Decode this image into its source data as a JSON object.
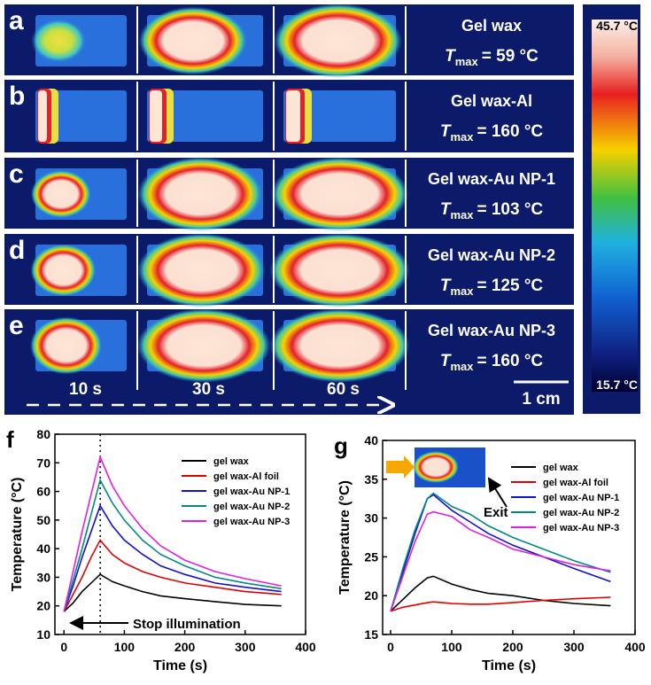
{
  "figure": {
    "rows": [
      {
        "label": "a",
        "sample": "Gel wax",
        "t": "T",
        "sub": "max",
        "tmax": "= 59 °C"
      },
      {
        "label": "b",
        "sample": "Gel wax-Al",
        "t": "T",
        "sub": "max",
        "tmax": "= 160 °C"
      },
      {
        "label": "c",
        "sample": "Gel wax-Au NP-1",
        "t": "T",
        "sub": "max",
        "tmax": "= 103 °C"
      },
      {
        "label": "d",
        "sample": "Gel wax-Au NP-2",
        "t": "T",
        "sub": "max",
        "tmax": "= 125 °C"
      },
      {
        "label": "e",
        "sample": "Gel wax-Au NP-3",
        "t": "T",
        "sub": "max",
        "tmax": "= 160 °C"
      }
    ],
    "times": [
      "10 s",
      "30 s",
      "60 s"
    ],
    "scale_bar": "1 cm",
    "colorbar_max": "45.7 °C",
    "colorbar_min": "15.7 °C"
  },
  "chart_data": [
    {
      "type": "line",
      "panel": "f",
      "xlabel": "Time (s)",
      "ylabel": "Temperature (°C)",
      "xlim": [
        -15,
        400
      ],
      "xticks": [
        0,
        100,
        200,
        300,
        400
      ],
      "ylim": [
        10,
        80
      ],
      "yticks": [
        10,
        20,
        30,
        40,
        50,
        60,
        70,
        80
      ],
      "legend": "upper right",
      "vline": 60,
      "annotation": "Stop illumination",
      "x": [
        0,
        15,
        30,
        45,
        60,
        80,
        100,
        130,
        160,
        200,
        250,
        300,
        360
      ],
      "series": [
        {
          "name": "gel wax",
          "color": "#000000",
          "values": [
            18,
            21,
            25,
            28,
            31,
            28.5,
            27,
            25,
            23.5,
            22.5,
            21.5,
            20.5,
            20
          ]
        },
        {
          "name": "gel wax-Al foil",
          "color": "#e00000",
          "values": [
            18,
            24,
            30,
            37,
            43,
            38,
            35,
            32,
            30,
            28,
            26.5,
            25,
            24
          ]
        },
        {
          "name": "gel wax-Au NP-1",
          "color": "#1010d0",
          "values": [
            18,
            27,
            37,
            46,
            55,
            48,
            43,
            38,
            34,
            31,
            28,
            26.5,
            25
          ]
        },
        {
          "name": "gel wax-Au NP-2",
          "color": "#008a80",
          "values": [
            18,
            29,
            40,
            52,
            64,
            56,
            50,
            43,
            38,
            34,
            30,
            28,
            26
          ]
        },
        {
          "name": "gel wax-Au NP-3",
          "color": "#e020e0",
          "values": [
            18,
            32,
            46,
            59,
            72,
            62,
            55,
            47,
            41,
            36,
            32,
            29.5,
            27
          ]
        }
      ]
    },
    {
      "type": "line",
      "panel": "g",
      "xlabel": "Time (s)",
      "ylabel": "Temperature (°C)",
      "xlim": [
        -13,
        400
      ],
      "xticks": [
        0,
        100,
        200,
        300,
        400
      ],
      "ylim": [
        15,
        40
      ],
      "yticks": [
        15,
        20,
        25,
        30,
        35,
        40
      ],
      "legend": "upper right",
      "annotation": "Exit",
      "x": [
        0,
        20,
        40,
        60,
        70,
        100,
        130,
        160,
        200,
        250,
        300,
        360
      ],
      "series": [
        {
          "name": "gel wax",
          "color": "#000000",
          "values": [
            18,
            19.5,
            21,
            22.3,
            22.5,
            21.5,
            20.8,
            20.3,
            20,
            19.4,
            19,
            18.7
          ]
        },
        {
          "name": "gel wax-Al foil",
          "color": "#e00000",
          "values": [
            18,
            18.5,
            18.8,
            19.1,
            19.2,
            19,
            18.9,
            18.9,
            19.1,
            19.4,
            19.6,
            19.8
          ]
        },
        {
          "name": "gel wax-Au NP-1",
          "color": "#1010d0",
          "values": [
            18,
            23,
            28,
            32.5,
            33,
            31,
            29.5,
            28,
            26.5,
            25,
            23.5,
            21.8
          ]
        },
        {
          "name": "gel wax-Au NP-2",
          "color": "#008a80",
          "values": [
            18,
            23.5,
            28.5,
            32.5,
            33.2,
            31.5,
            30.5,
            29,
            27.5,
            26,
            24.5,
            23
          ]
        },
        {
          "name": "gel wax-Au NP-3",
          "color": "#e020e0",
          "values": [
            18,
            22.5,
            27,
            30.5,
            30.8,
            30.2,
            28.5,
            27.5,
            26,
            25,
            24,
            23.2
          ]
        }
      ]
    }
  ]
}
